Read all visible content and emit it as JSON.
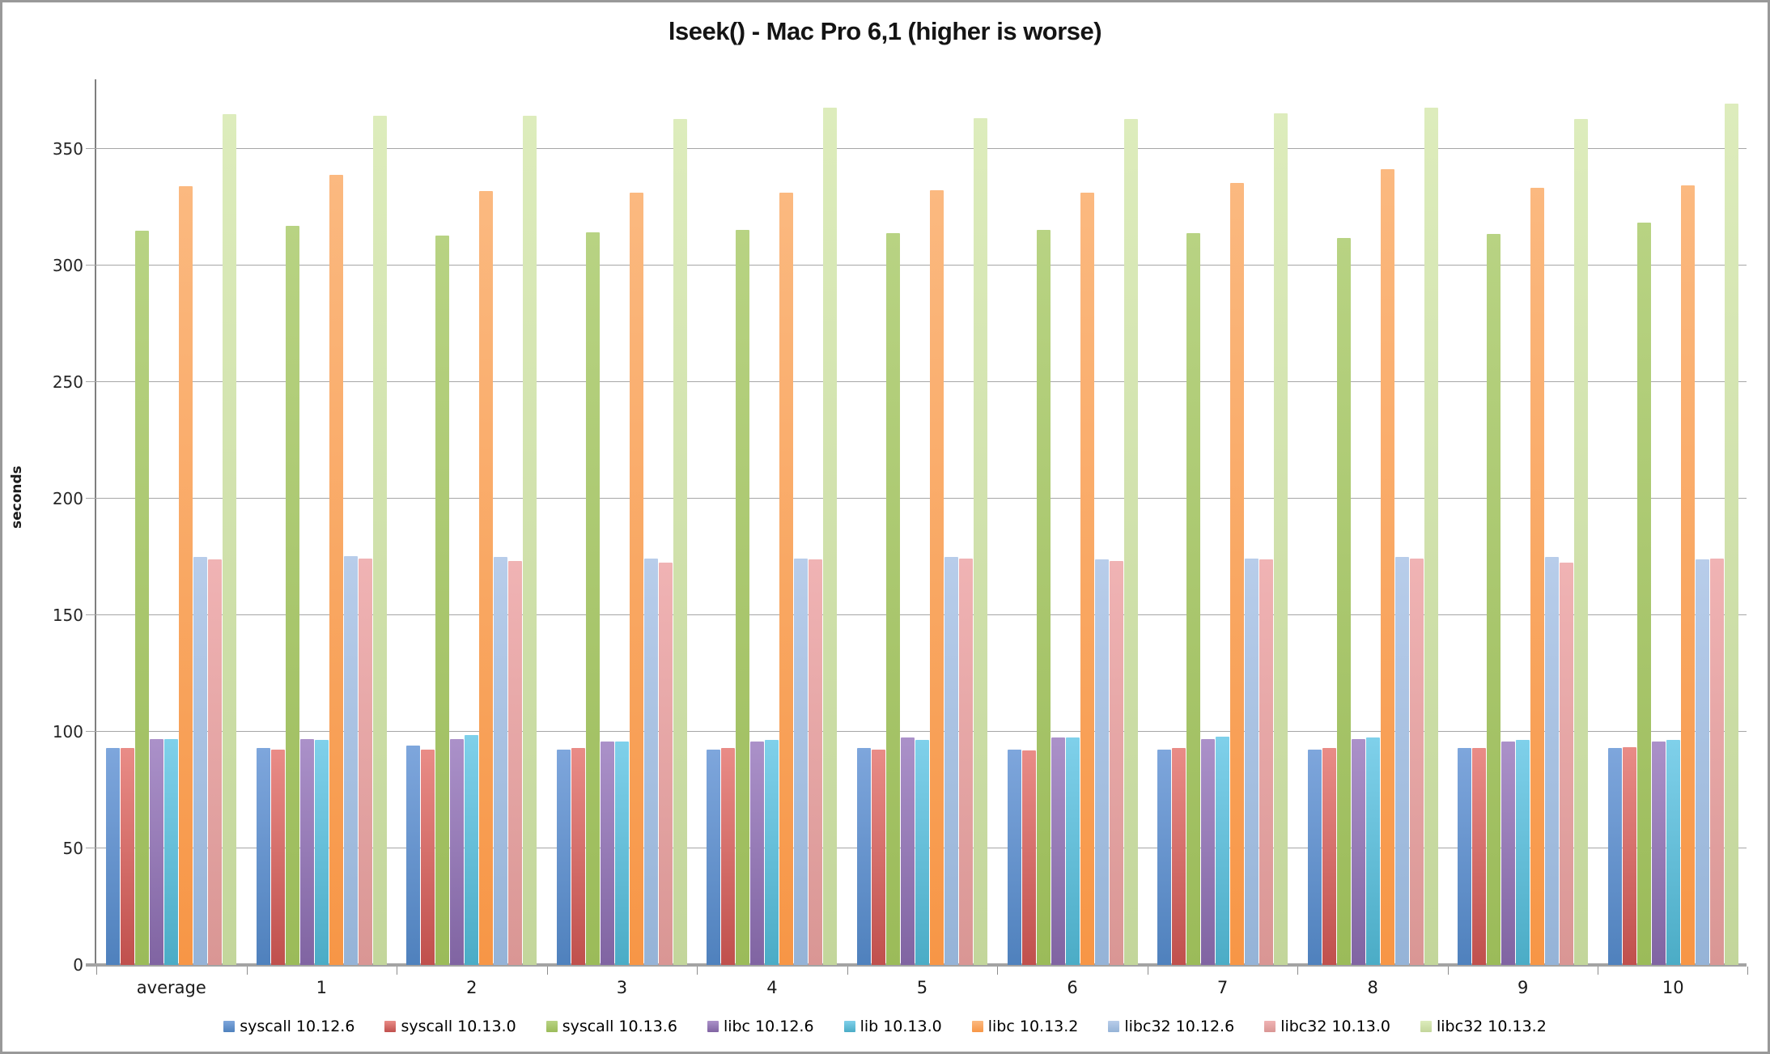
{
  "page": {
    "background": "#ffffff",
    "frame_border_color": "#999999",
    "axis_line_color": "#7f7f7f",
    "gridline_color": "#a6a6a6"
  },
  "chart_data": {
    "type": "bar",
    "title": "lseek() - Mac Pro 6,1 (higher is worse)",
    "xlabel": "",
    "ylabel": "seconds",
    "ylim": [
      0,
      380
    ],
    "yticks": [
      0,
      50,
      100,
      150,
      200,
      250,
      300,
      350
    ],
    "grid": true,
    "legend_position": "bottom",
    "categories": [
      "average",
      "1",
      "2",
      "3",
      "4",
      "5",
      "6",
      "7",
      "8",
      "9",
      "10"
    ],
    "series": [
      {
        "name": "syscall 10.12.6",
        "color": "#4f81bd",
        "color_light": "#7ea6dc",
        "values": [
          93,
          93,
          94,
          92.5,
          92.5,
          93,
          92.5,
          92.5,
          92.5,
          93,
          93
        ]
      },
      {
        "name": "syscall 10.13.0",
        "color": "#c0504d",
        "color_light": "#e98c87",
        "values": [
          93,
          92.5,
          92.5,
          93,
          93,
          92.5,
          92,
          93,
          93,
          93,
          93.5
        ]
      },
      {
        "name": "syscall 10.13.6",
        "color": "#9bbb59",
        "color_light": "#b8d383",
        "values": [
          315,
          317,
          313,
          314.5,
          315.5,
          314,
          315.5,
          314,
          312,
          313.5,
          318.5
        ]
      },
      {
        "name": "libc 10.12.6",
        "color": "#8064a2",
        "color_light": "#ab91c9",
        "values": [
          97,
          97,
          97,
          96,
          96,
          97.5,
          97.5,
          97,
          97,
          96,
          96
        ]
      },
      {
        "name": "lib 10.13.0",
        "color": "#4bacc6",
        "color_light": "#7fd0ea",
        "values": [
          97,
          96.5,
          98.5,
          96,
          96.5,
          96.5,
          97.5,
          98,
          97.5,
          96.5,
          96.5
        ]
      },
      {
        "name": "libc 10.13.2",
        "color": "#f79646",
        "color_light": "#fbb980",
        "values": [
          334,
          339,
          332,
          331.5,
          331.5,
          332.5,
          331.5,
          335.5,
          341.5,
          333.5,
          334.5
        ]
      },
      {
        "name": "libc32 10.12.6",
        "color": "#95b3d7",
        "color_light": "#b8cdea",
        "values": [
          175,
          175.5,
          175,
          174.5,
          174.5,
          175,
          174,
          174.5,
          175,
          175,
          174
        ]
      },
      {
        "name": "libc32 10.13.0",
        "color": "#d99694",
        "color_light": "#f0b3b4",
        "values": [
          174,
          174.5,
          173.5,
          172.5,
          174,
          174.5,
          173.5,
          174,
          174.5,
          172.5,
          174.5
        ]
      },
      {
        "name": "libc32 10.13.2",
        "color": "#c3d69b",
        "color_light": "#ddecbc",
        "values": [
          365,
          364.5,
          364.5,
          363,
          368,
          363.5,
          363,
          365.5,
          368,
          363,
          369.5
        ]
      }
    ]
  }
}
